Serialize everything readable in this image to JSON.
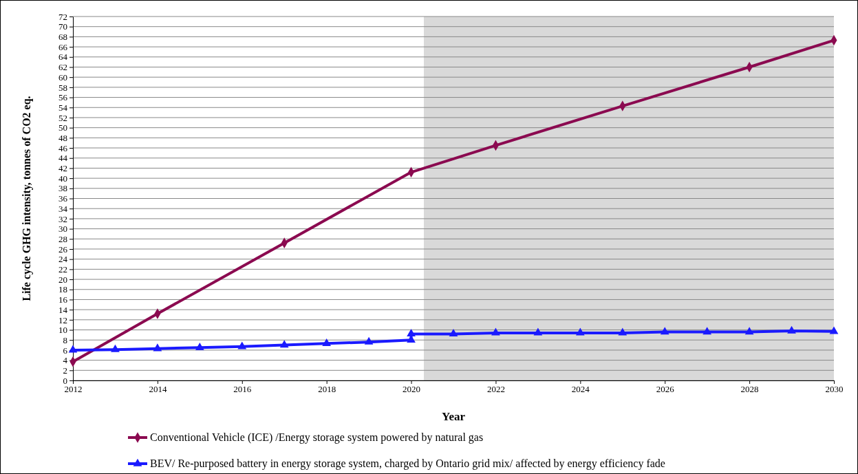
{
  "chart_data": {
    "type": "line",
    "xlabel": "Year",
    "ylabel": "Life cycle GHG intensity, tonnes of CO2 eq.",
    "xlim": [
      2012,
      2030
    ],
    "xticks": [
      2012,
      2014,
      2016,
      2018,
      2020,
      2022,
      2024,
      2026,
      2028,
      2030
    ],
    "ylim": [
      0,
      72
    ],
    "yticks": [
      0,
      2,
      4,
      6,
      8,
      10,
      12,
      14,
      16,
      18,
      20,
      22,
      24,
      26,
      28,
      30,
      32,
      34,
      36,
      38,
      40,
      42,
      44,
      46,
      48,
      50,
      52,
      54,
      56,
      58,
      60,
      62,
      64,
      66,
      68,
      70,
      72
    ],
    "grid": "y",
    "legend": "bottom",
    "line_style": "solid",
    "bands": [
      {
        "axis": "x",
        "from": 2020.3,
        "to": 2030,
        "color": "#d9d9d9"
      }
    ],
    "series": [
      {
        "name": "Conventional Vehicle (ICE) /Energy storage system powered by natural gas",
        "color": "#8b0a50",
        "marker": "diamond",
        "x": [
          2012,
          2014,
          2017,
          2020,
          2022,
          2025,
          2028,
          2030
        ],
        "values": [
          3.7,
          13.2,
          27.2,
          41.2,
          46.5,
          54.3,
          62,
          67.3
        ]
      },
      {
        "name": "BEV/ Re-purposed battery in energy storage system, charged by Ontario grid mix/ affected by energy efficiency fade",
        "color": "#1a1aff",
        "marker": "triangle",
        "x": [
          2012,
          2013,
          2014,
          2015,
          2016,
          2017,
          2018,
          2019,
          2020,
          2020,
          2021,
          2022,
          2023,
          2024,
          2025,
          2026,
          2027,
          2028,
          2029,
          2030
        ],
        "values": [
          6,
          6.1,
          6.3,
          6.5,
          6.7,
          7,
          7.3,
          7.6,
          8,
          9.2,
          9.2,
          9.4,
          9.4,
          9.4,
          9.4,
          9.6,
          9.6,
          9.6,
          9.8,
          9.7
        ]
      }
    ]
  }
}
